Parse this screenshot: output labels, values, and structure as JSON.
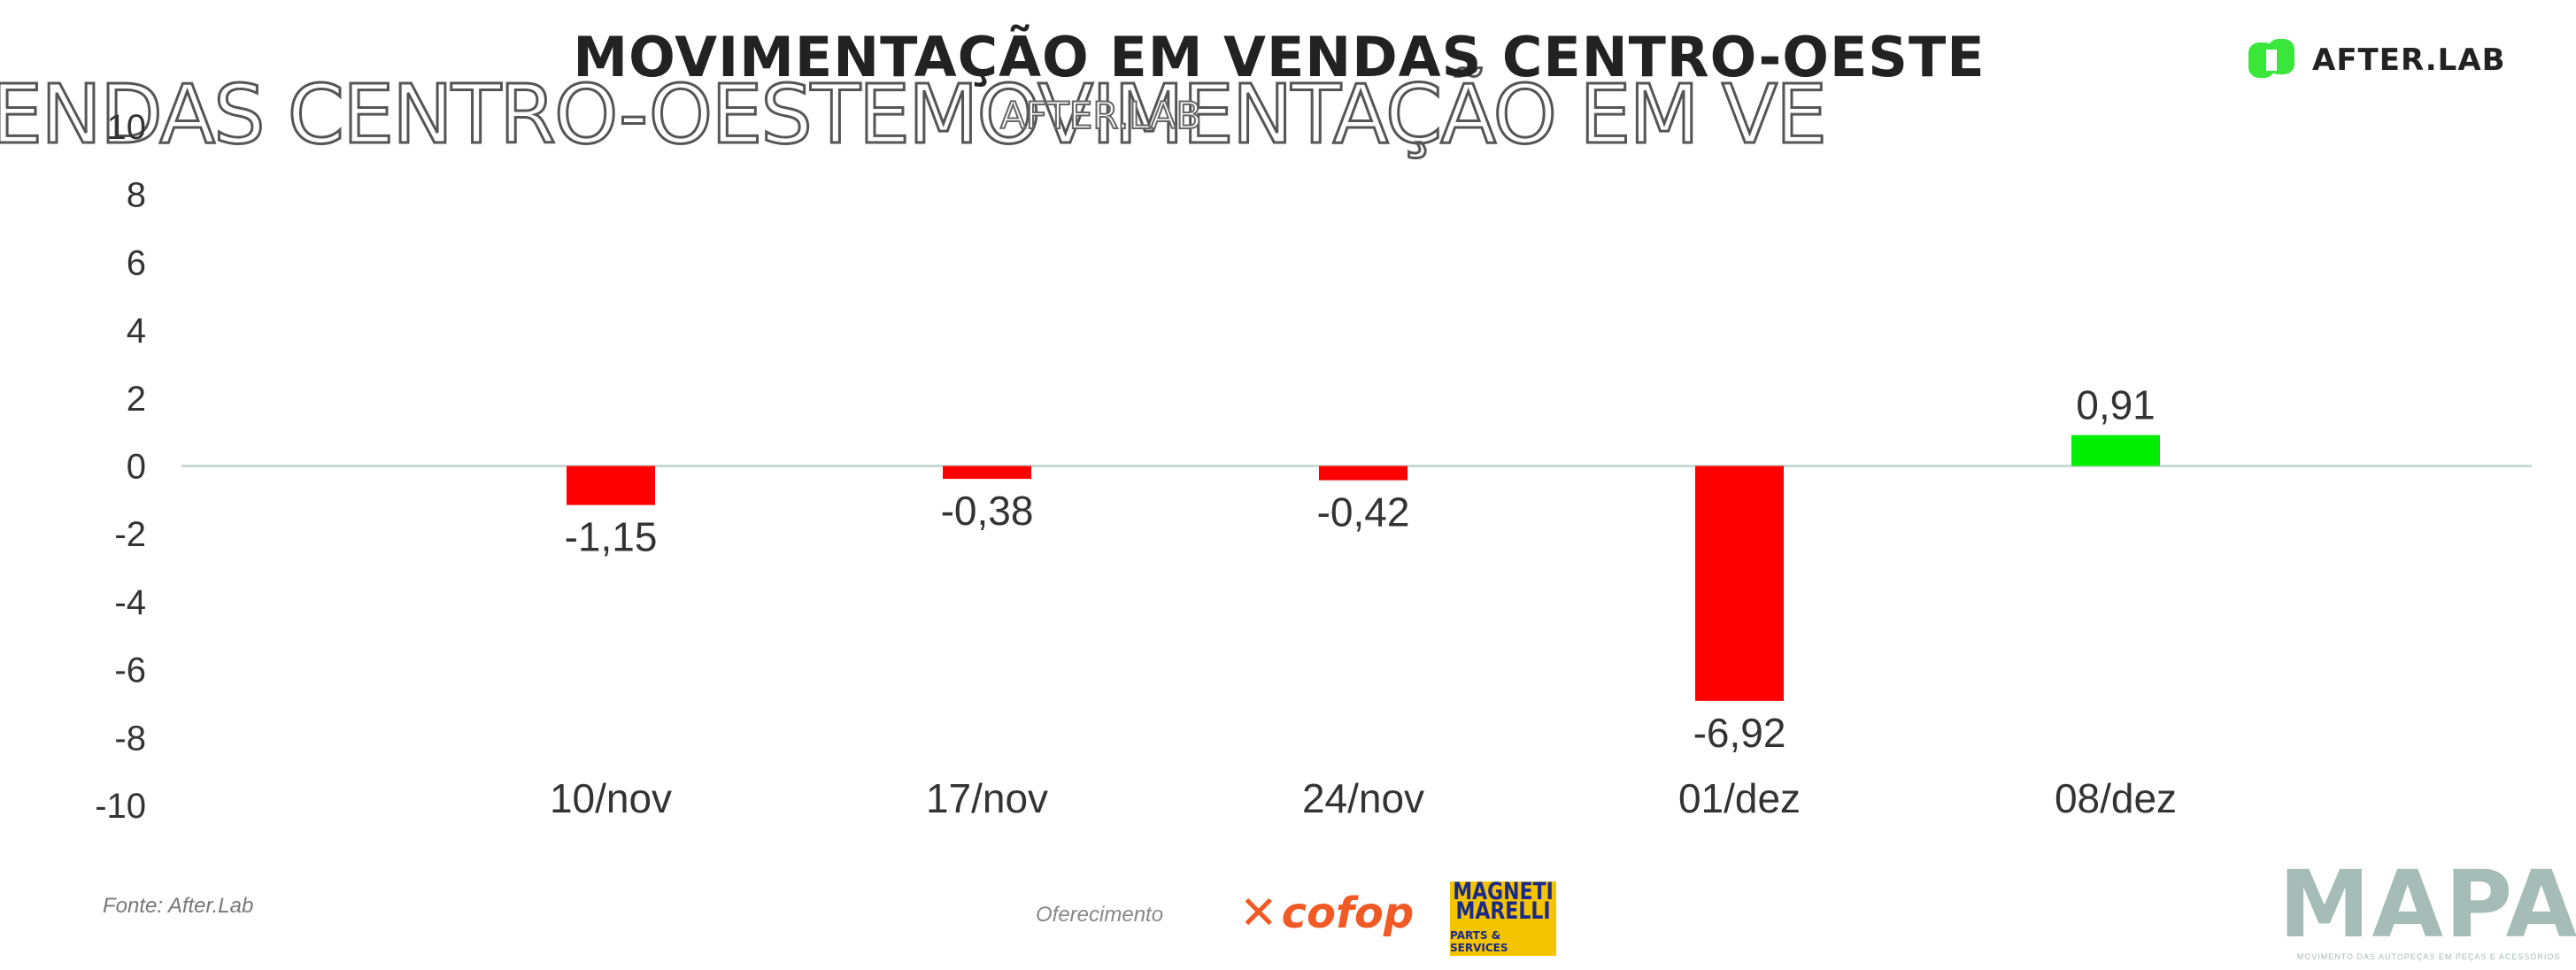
{
  "title": "MOVIMENTAÇÃO EM VENDAS CENTRO-OESTE",
  "ghost_text": "ENDAS CENTRO-OESTEMOVIMENTAÇÃO EM VE",
  "ghost_logo_text": "AFTER.LAB",
  "brand": {
    "logo_text": "AFTER.LAB",
    "accent": "#39e639"
  },
  "footer": {
    "source": "Fonte: After.Lab",
    "sponsor_label": "Oferecimento",
    "cofop": "cofop",
    "magneti_line1": "MAGNETI",
    "magneti_line2": "MARELLI",
    "magneti_line3": "PARTS & SERVICES",
    "mapa": "MAPA",
    "mapa_tagline": "MOVIMENTO DAS AUTOPEÇAS EM PEÇAS E ACESSÓRIOS"
  },
  "colors": {
    "negative": "#ff0000",
    "positive": "#00ee00",
    "zero_line": "#c8d8d4"
  },
  "chart_data": {
    "type": "bar",
    "categories": [
      "10/nov",
      "17/nov",
      "24/nov",
      "01/dez",
      "08/dez"
    ],
    "values": [
      -1.15,
      -0.38,
      -0.42,
      -6.92,
      0.91
    ],
    "value_labels": [
      "-1,15",
      "-0,38",
      "-0,42",
      "-6,92",
      "0,91"
    ],
    "yticks": [
      "10",
      "8",
      "6",
      "4",
      "2",
      "0",
      "-2",
      "-4",
      "-6",
      "-8",
      "-10"
    ],
    "ylim": [
      -10,
      10
    ],
    "grid": false,
    "title": "MOVIMENTAÇÃO EM VENDAS CENTRO-OESTE"
  }
}
